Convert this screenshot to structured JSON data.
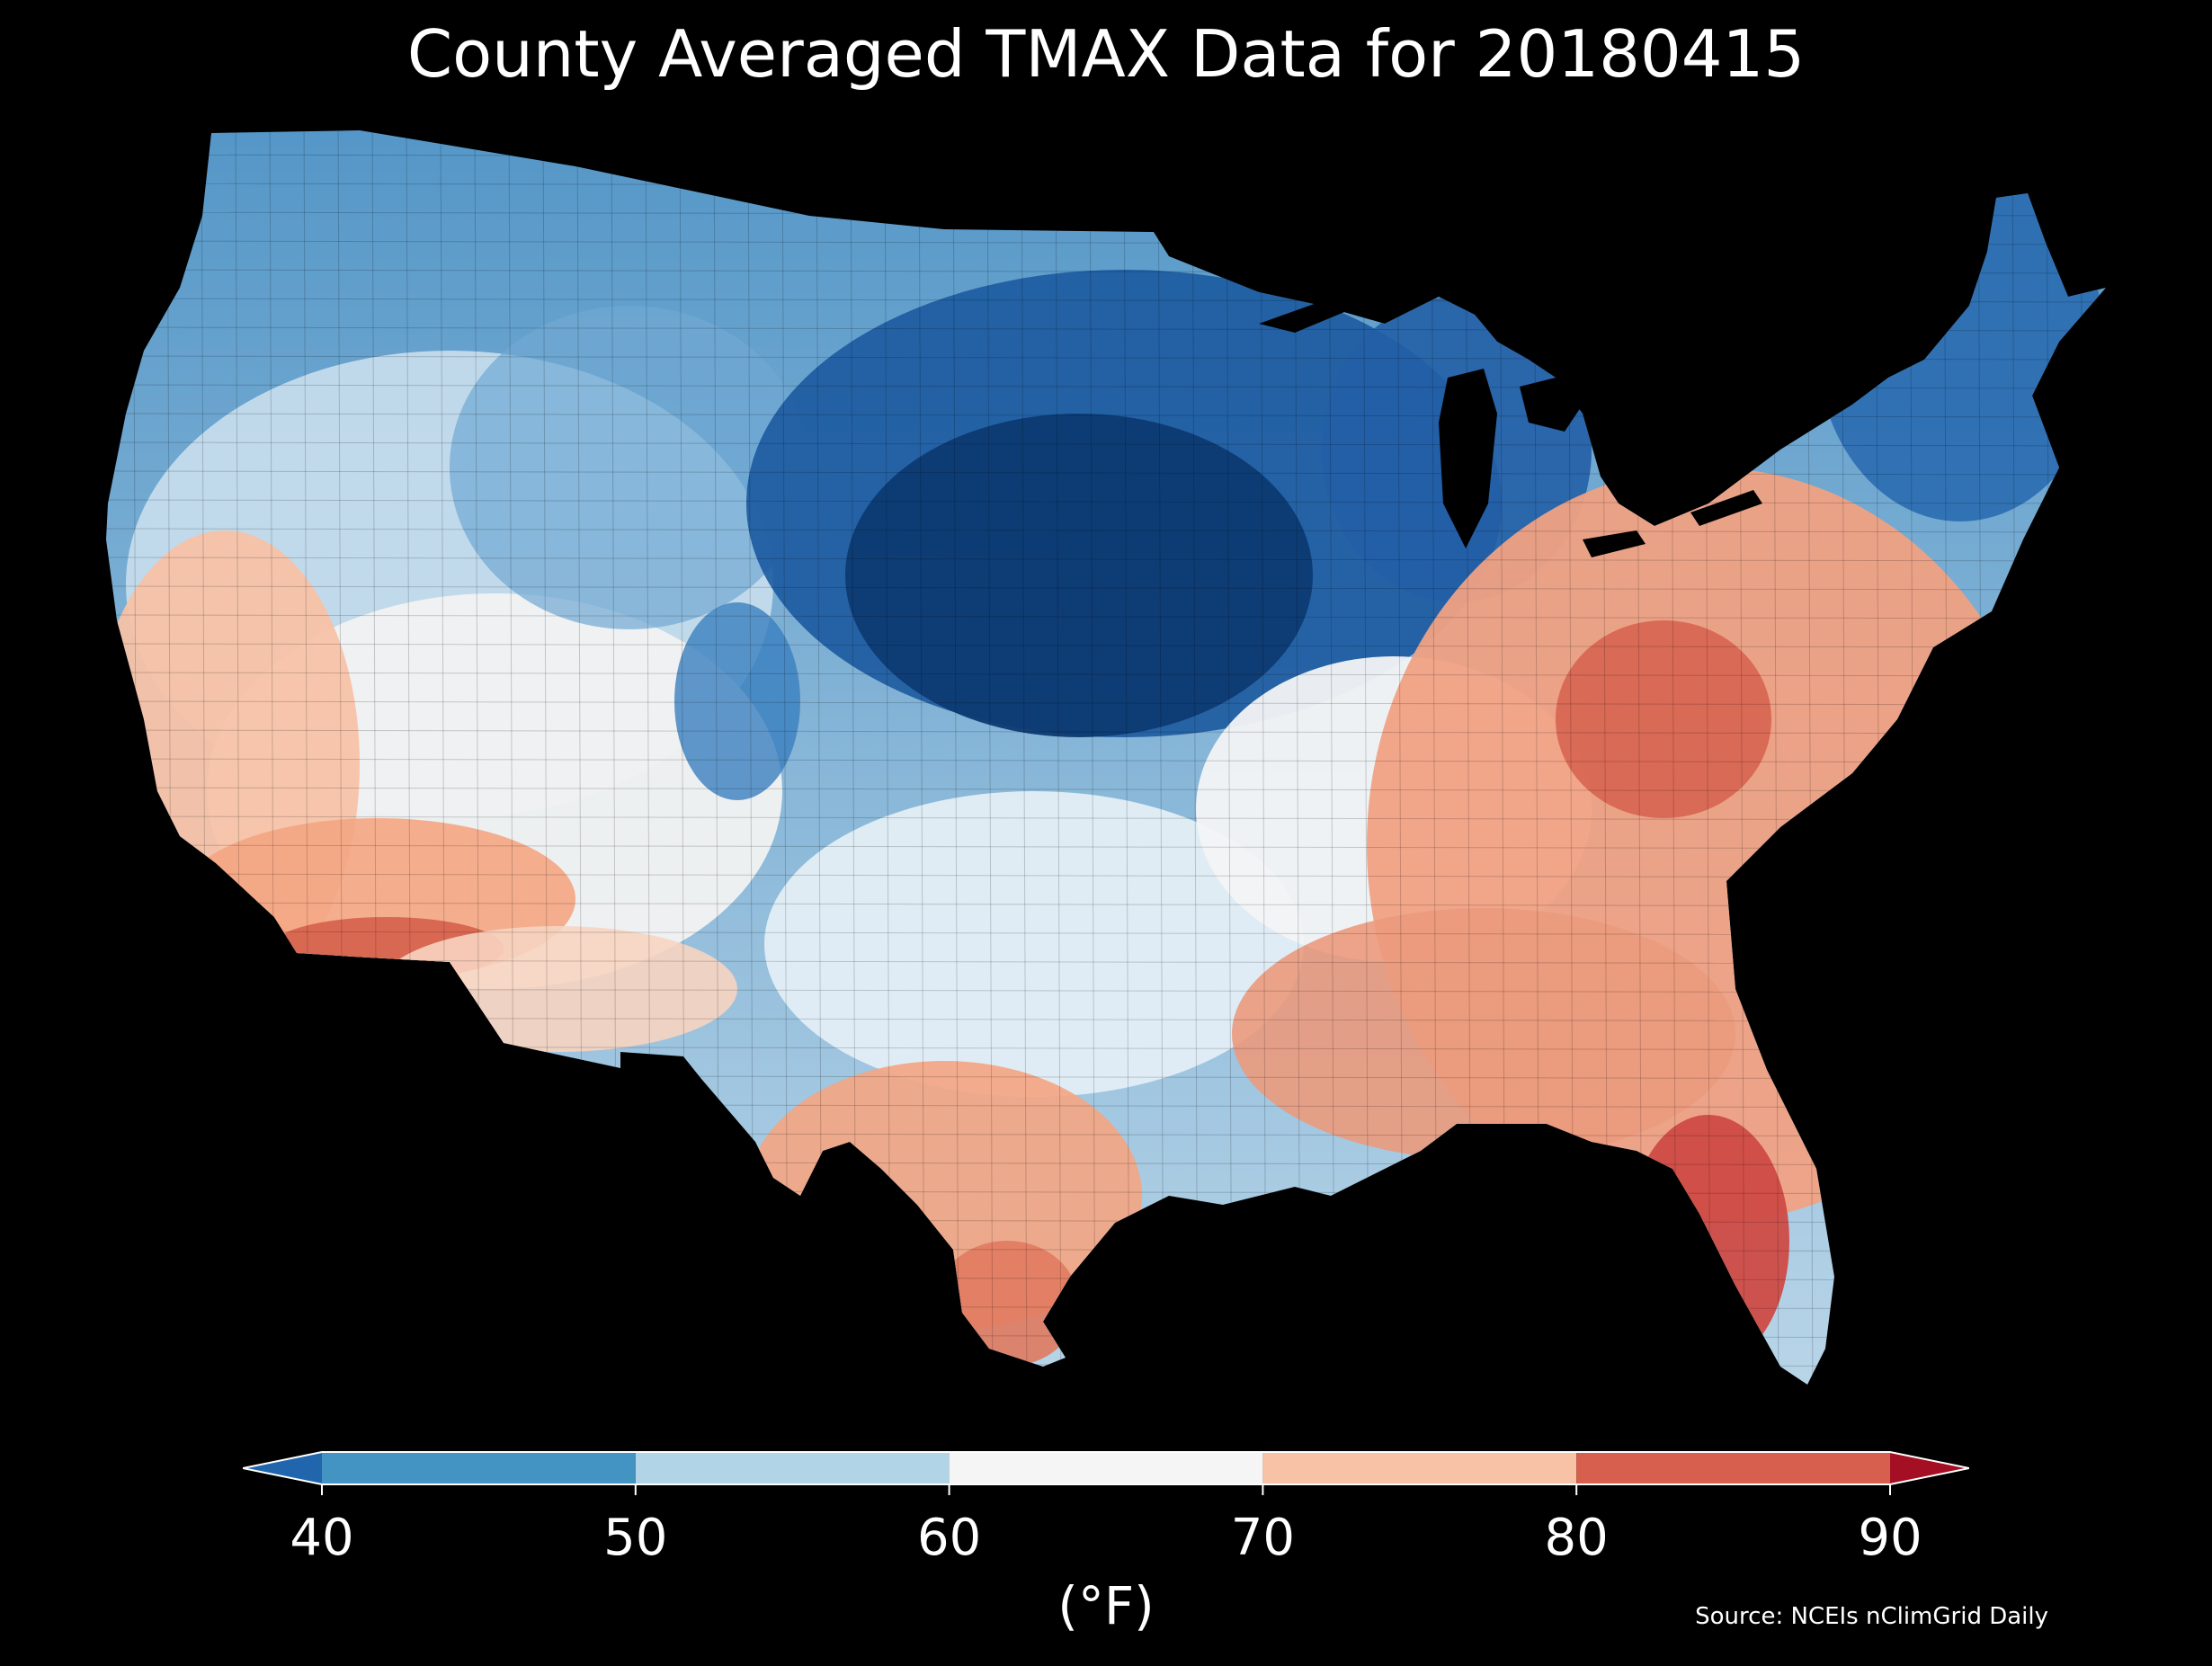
{
  "title": "County Averaged TMAX Data for 20180415",
  "legend": {
    "ticks": [
      "40",
      "50",
      "60",
      "70",
      "80",
      "90"
    ],
    "unit": "(°F)",
    "bins": [
      {
        "from": null,
        "to": 40,
        "color": "#2166ac"
      },
      {
        "from": 40,
        "to": 50,
        "color": "#4393c3"
      },
      {
        "from": 50,
        "to": 60,
        "color": "#b2d4e7"
      },
      {
        "from": 60,
        "to": 70,
        "color": "#f5f5f5"
      },
      {
        "from": 70,
        "to": 80,
        "color": "#f7c2a6"
      },
      {
        "from": 80,
        "to": 90,
        "color": "#d6604d"
      },
      {
        "from": 90,
        "to": null,
        "color": "#a50f24"
      }
    ]
  },
  "source": "Source: NCEIs nClimGrid Daily",
  "colors": {
    "background": "#000000",
    "text": "#ffffff",
    "deep_blue": "#08306b",
    "blue": "#2166ac",
    "light_blue": "#92c5de",
    "white": "#f5f5f5",
    "peach": "#f4a582",
    "red": "#d6604d",
    "dark_red": "#b2182b"
  }
}
